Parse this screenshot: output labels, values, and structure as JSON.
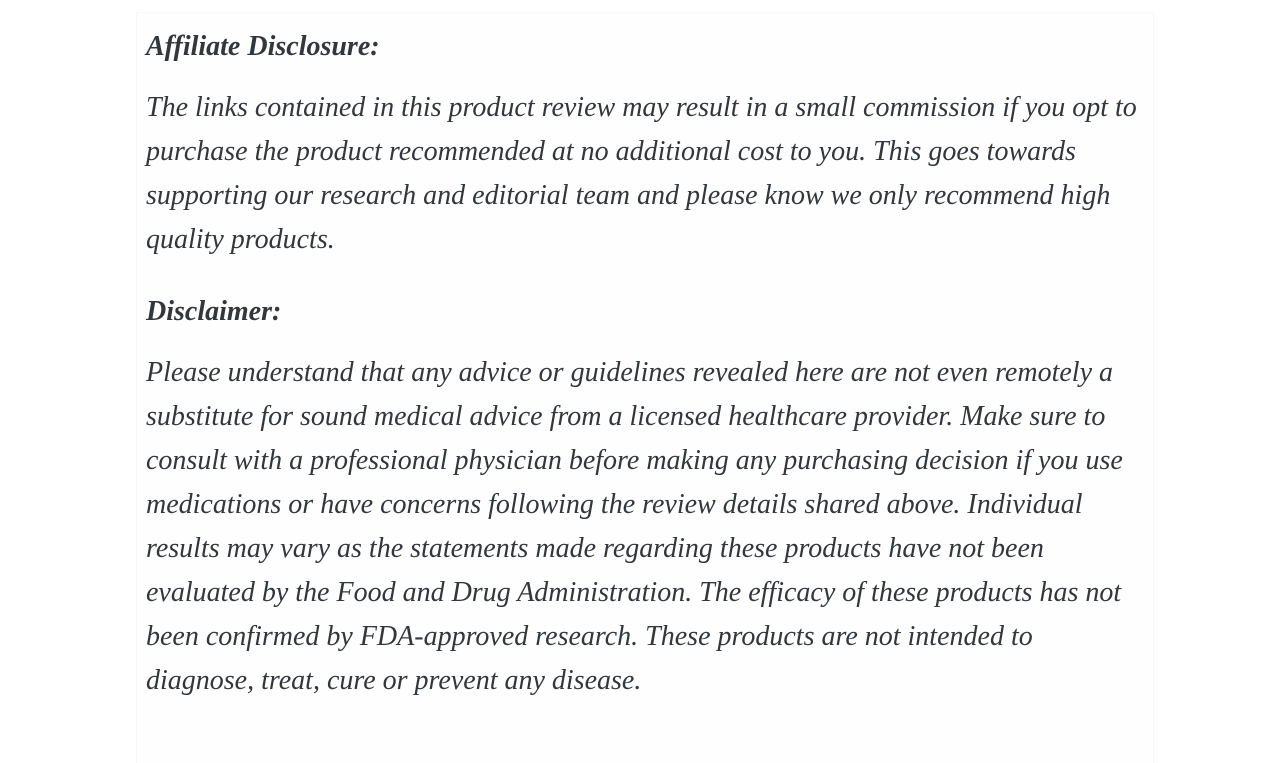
{
  "page": {
    "background_color": "#ffffff",
    "card_background_color": "#fefefe",
    "text_color": "#32373c"
  },
  "content": {
    "sections": [
      {
        "heading": "Affiliate Disclosure:",
        "body": "The links contained in this product review may result in a small commission if you opt to purchase the product recommended at no additional cost to you. This goes towards supporting our research and editorial team and please know we only recommend high quality products."
      },
      {
        "heading": "Disclaimer:",
        "body": "Please understand that any advice or guidelines revealed here are not even remotely a substitute for sound medical advice from a licensed healthcare provider. Make sure to consult with a professional physician before making any purchasing decision if you use medications or have concerns following the review details shared above. Individual results may vary as the statements made regarding these products have not been evaluated by the Food and Drug Administration. The efficacy of these products has not been confirmed by FDA-approved research. These products are not intended to diagnose, treat, cure or prevent any disease."
      }
    ]
  }
}
